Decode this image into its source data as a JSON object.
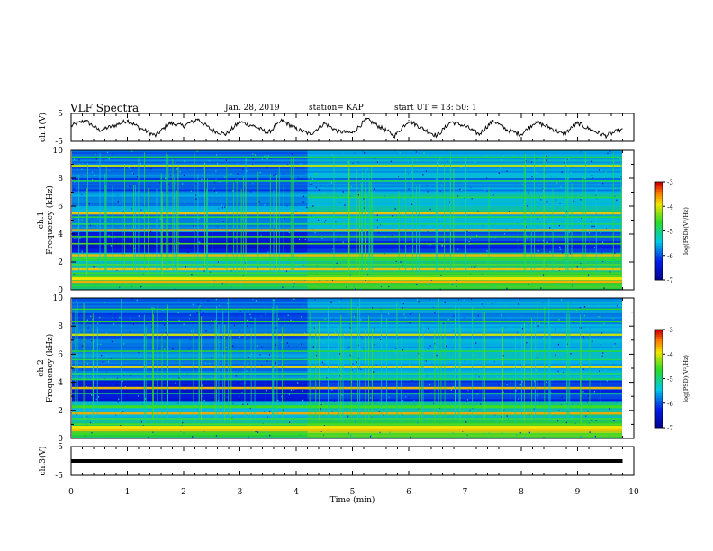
{
  "header": {
    "title": "VLF Spectra",
    "date": "Jan. 28, 2019",
    "station": "station= KAP",
    "start": "start  UT  =   13: 50: 1"
  },
  "chart_data": [
    {
      "type": "line",
      "ylabel": "ch.1(V)",
      "xlim": [
        0,
        10
      ],
      "ylim": [
        -5,
        5
      ],
      "y_ticks": [
        "5",
        "-5"
      ],
      "x": [
        0.0,
        0.25,
        0.5,
        0.75,
        1.0,
        1.25,
        1.5,
        1.75,
        2.0,
        2.25,
        2.5,
        2.75,
        3.0,
        3.25,
        3.5,
        3.75,
        4.0,
        4.25,
        4.5,
        4.75,
        5.0,
        5.25,
        5.5,
        5.75,
        6.0,
        6.25,
        6.5,
        6.75,
        7.0,
        7.25,
        7.5,
        7.75,
        8.0,
        8.25,
        8.5,
        8.75,
        9.0,
        9.25,
        9.5,
        9.75
      ],
      "values": [
        0.5,
        2.5,
        -1.0,
        0.5,
        2.5,
        -0.5,
        -3.0,
        1.5,
        0.5,
        3.0,
        -1.0,
        -2.5,
        2.0,
        0.5,
        -2.0,
        2.5,
        -0.5,
        -2.5,
        1.5,
        -1.5,
        -2.0,
        3.0,
        0.0,
        -3.0,
        2.5,
        -0.5,
        -3.0,
        2.0,
        0.5,
        -2.5,
        2.5,
        -1.0,
        -2.5,
        2.0,
        0.0,
        -2.5,
        1.5,
        -1.0,
        -3.0,
        -1.0
      ]
    },
    {
      "type": "heatmap",
      "ylabel": "ch.1\nFrequency (kHz)",
      "xlim": [
        0,
        10
      ],
      "ylim": [
        0,
        10
      ],
      "y_ticks": [
        "10",
        "8",
        "6",
        "4",
        "2",
        "0"
      ],
      "colorbar": {
        "label": "log(PSD)(V²/Hz)",
        "range": [
          -7,
          -3
        ],
        "ticks": [
          "-3",
          "-4",
          "-5",
          "-6",
          "-7"
        ]
      },
      "bands_khz": [
        0.3,
        0.6,
        0.9,
        1.2,
        1.5,
        1.8,
        2.1,
        2.5,
        3.3,
        3.8,
        4.3,
        4.7,
        5.2,
        5.5,
        6.6,
        7.8,
        8.9,
        9.5
      ]
    },
    {
      "type": "heatmap",
      "ylabel": "ch.2\nFrequency (kHz)",
      "xlim": [
        0,
        10
      ],
      "ylim": [
        0,
        10
      ],
      "y_ticks": [
        "10",
        "8",
        "6",
        "4",
        "2",
        "0"
      ],
      "colorbar": {
        "label": "log(PSD)(V²/Hz)",
        "range": [
          -7,
          -3
        ],
        "ticks": [
          "-3",
          "-4",
          "-5",
          "-6",
          "-7"
        ]
      },
      "bands_khz": [
        0.3,
        0.6,
        1.0,
        1.4,
        1.8,
        2.3,
        3.2,
        3.6,
        4.2,
        4.6,
        5.1,
        5.6,
        6.2,
        7.4,
        8.3,
        9.2
      ]
    },
    {
      "type": "line",
      "ylabel": "ch.3(V)",
      "xlabel": "Time (min)",
      "xlim": [
        0,
        10
      ],
      "ylim": [
        -5,
        5
      ],
      "y_ticks": [
        "5",
        "-5"
      ],
      "x_ticks": [
        "0",
        "1",
        "2",
        "3",
        "4",
        "5",
        "6",
        "7",
        "8",
        "9",
        "10"
      ],
      "x": [
        0.0,
        9.8
      ],
      "values": [
        0,
        0
      ]
    }
  ]
}
